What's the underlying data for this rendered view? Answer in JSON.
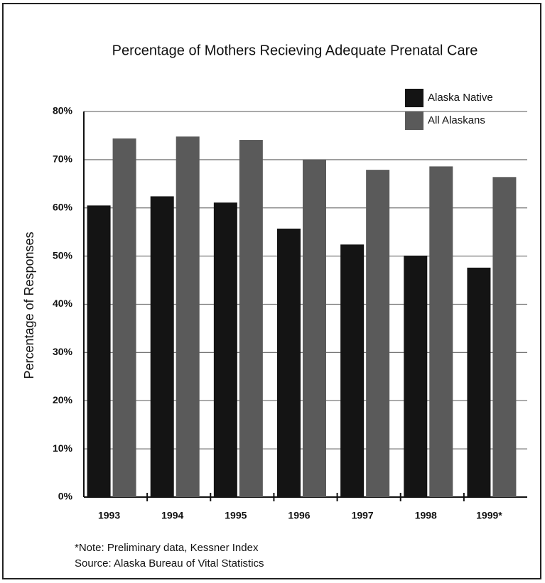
{
  "chart_data": {
    "type": "bar",
    "title": "Percentage of Mothers Recieving Adequate Prenatal Care",
    "y_label": "Percentage of Responses",
    "categories": [
      "1993",
      "1994",
      "1995",
      "1996",
      "1997",
      "1998",
      "1999*"
    ],
    "series": [
      {
        "name": "Alaska Native",
        "color": "#141414",
        "values": [
          60.5,
          62.4,
          61.1,
          55.7,
          52.4,
          50.1,
          47.6
        ]
      },
      {
        "name": "All Alaskans",
        "color": "#5a5a5a",
        "values": [
          74.4,
          74.8,
          74.1,
          70.0,
          67.9,
          68.6,
          66.4
        ]
      }
    ],
    "ylim": [
      0,
      80
    ],
    "yticks": [
      {
        "value": 0,
        "label": "0%"
      },
      {
        "value": 10,
        "label": "10%"
      },
      {
        "value": 20,
        "label": "20%"
      },
      {
        "value": 30,
        "label": "30%"
      },
      {
        "value": 40,
        "label": "40%"
      },
      {
        "value": 50,
        "label": "50%"
      },
      {
        "value": 60,
        "label": "60%"
      },
      {
        "value": 70,
        "label": "70%"
      },
      {
        "value": 80,
        "label": "80%"
      }
    ],
    "grid": true,
    "legend": "upper right",
    "notes": [
      "*Note: Preliminary data, Kessner Index",
      "Source: Alaska Bureau of Vital Statistics"
    ]
  }
}
